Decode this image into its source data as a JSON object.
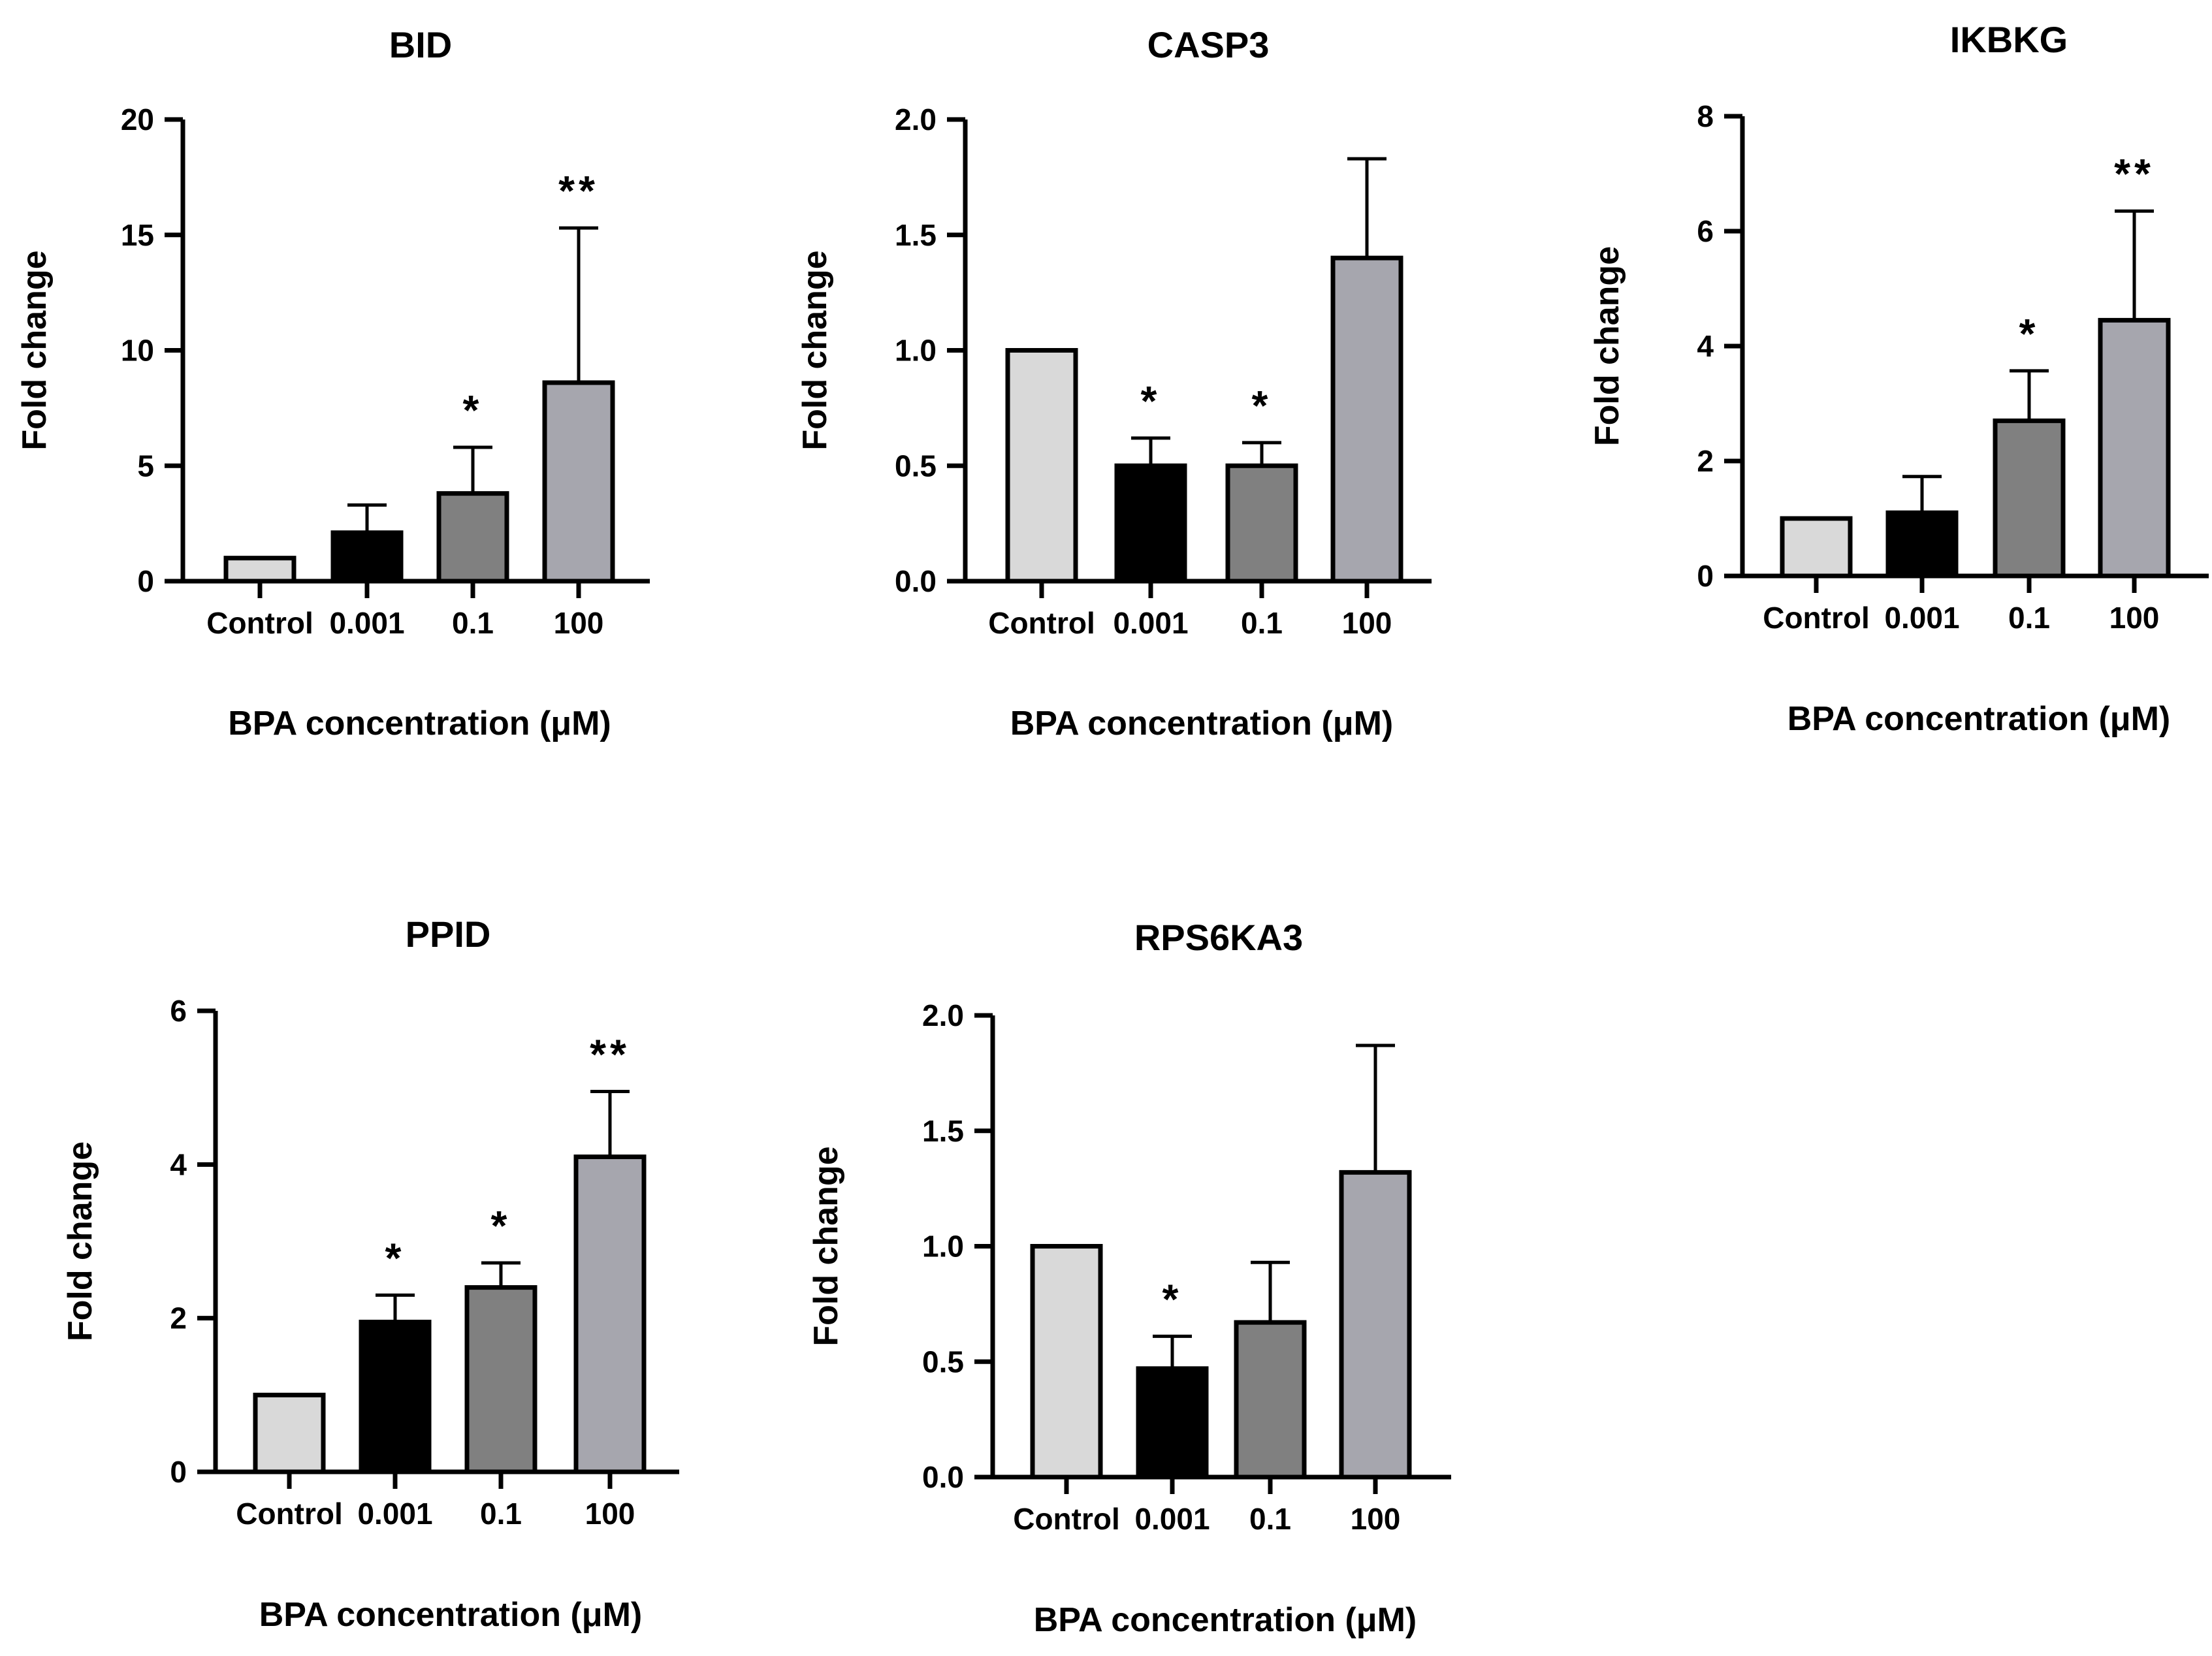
{
  "figure": {
    "background": "#ffffff"
  },
  "chart_data": [
    {
      "type": "bar",
      "title": "BID",
      "xlabel": "BPA concentration (μM)",
      "ylabel": "Fold change",
      "categories": [
        "Control",
        "0.001",
        "0.1",
        "100"
      ],
      "values": [
        1.0,
        2.1,
        3.8,
        8.6
      ],
      "errors": [
        0,
        1.2,
        2.0,
        6.7
      ],
      "significance": [
        "",
        "",
        "*",
        "**"
      ],
      "ylim": [
        0,
        20
      ],
      "yticks": [
        0,
        5,
        10,
        15,
        20
      ],
      "ytick_labels": [
        "0",
        "5",
        "10",
        "15",
        "20"
      ],
      "bar_colors": [
        "#d9d9d9",
        "#000000",
        "#808080",
        "#a6a6ae"
      ]
    },
    {
      "type": "bar",
      "title": "CASP3",
      "xlabel": "BPA concentration (μM)",
      "ylabel": "Fold change",
      "categories": [
        "Control",
        "0.001",
        "0.1",
        "100"
      ],
      "values": [
        1.0,
        0.5,
        0.5,
        1.4
      ],
      "errors": [
        0,
        0.12,
        0.1,
        0.43
      ],
      "significance": [
        "",
        "*",
        "*",
        ""
      ],
      "ylim": [
        0,
        2
      ],
      "yticks": [
        0,
        0.5,
        1.0,
        1.5,
        2.0
      ],
      "ytick_labels": [
        "0.0",
        "0.5",
        "1.0",
        "1.5",
        "2.0"
      ],
      "bar_colors": [
        "#d9d9d9",
        "#000000",
        "#808080",
        "#a6a6ae"
      ]
    },
    {
      "type": "bar",
      "title": "IKBKG",
      "xlabel": "BPA concentration (μM)",
      "ylabel": "Fold change",
      "categories": [
        "Control",
        "0.001",
        "0.1",
        "100"
      ],
      "values": [
        1.0,
        1.1,
        2.7,
        4.45
      ],
      "errors": [
        0,
        0.63,
        0.87,
        1.9
      ],
      "significance": [
        "",
        "",
        "*",
        "**"
      ],
      "ylim": [
        0,
        8
      ],
      "yticks": [
        0,
        2,
        4,
        6,
        8
      ],
      "ytick_labels": [
        "0",
        "2",
        "4",
        "6",
        "8"
      ],
      "bar_colors": [
        "#d9d9d9",
        "#000000",
        "#808080",
        "#a6a6ae"
      ]
    },
    {
      "type": "bar",
      "title": "PPID",
      "xlabel": "BPA concentration (μM)",
      "ylabel": "Fold change",
      "categories": [
        "Control",
        "0.001",
        "0.1",
        "100"
      ],
      "values": [
        1.0,
        1.95,
        2.4,
        4.1
      ],
      "errors": [
        0,
        0.35,
        0.32,
        0.85
      ],
      "significance": [
        "",
        "*",
        "*",
        "**"
      ],
      "ylim": [
        0,
        6
      ],
      "yticks": [
        0,
        2,
        4,
        6
      ],
      "ytick_labels": [
        "0",
        "2",
        "4",
        "6"
      ],
      "bar_colors": [
        "#d9d9d9",
        "#000000",
        "#808080",
        "#a6a6ae"
      ]
    },
    {
      "type": "bar",
      "title": "RPS6KA3",
      "xlabel": "BPA concentration (μM)",
      "ylabel": "Fold change",
      "categories": [
        "Control",
        "0.001",
        "0.1",
        "100"
      ],
      "values": [
        1.0,
        0.47,
        0.67,
        1.32
      ],
      "errors": [
        0,
        0.14,
        0.26,
        0.55
      ],
      "significance": [
        "",
        "*",
        "",
        ""
      ],
      "ylim": [
        0,
        2
      ],
      "yticks": [
        0,
        0.5,
        1.0,
        1.5,
        2.0
      ],
      "ytick_labels": [
        "0.0",
        "0.5",
        "1.0",
        "1.5",
        "2.0"
      ],
      "bar_colors": [
        "#d9d9d9",
        "#000000",
        "#808080",
        "#a6a6ae"
      ]
    }
  ]
}
